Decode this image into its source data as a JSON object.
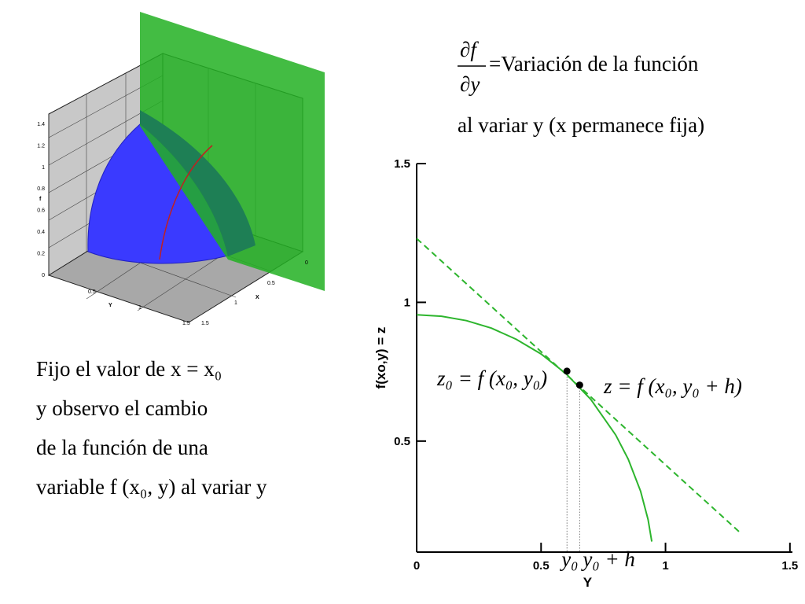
{
  "heading": {
    "numerator": "∂f",
    "denominator": "∂y",
    "text": "=Variación de la función",
    "line2": "al variar y (x permanece fija)"
  },
  "left_text": [
    "Fijo el valor de x = x₀",
    "y observo el cambio",
    "de la función de una",
    "variable f (x₀, y) al variar y"
  ],
  "surface_plot": {
    "f_label": "f",
    "y_label": "Y",
    "x_label": "X",
    "f_ticks": [
      "1.4",
      "1.2",
      "1",
      "0.8",
      "0.6",
      "0.4",
      "0.2",
      "0"
    ],
    "y_ticks": [
      "0.5",
      "1",
      "1.5"
    ],
    "x_ticks": [
      "0",
      "0.5",
      "1",
      "1.5"
    ]
  },
  "chart_data": {
    "type": "line",
    "xlabel": "Y",
    "ylabel": "f(xo,y) = z",
    "xlim": [
      0,
      1.51
    ],
    "ylim": [
      0.1,
      1.5
    ],
    "xticks": [
      0,
      0.5,
      1,
      1.5
    ],
    "yticks": [
      0.5,
      1,
      1.5
    ],
    "series": [
      {
        "color": "#2db52d",
        "style": "solid",
        "x": [
          0,
          0.1,
          0.2,
          0.3,
          0.4,
          0.5,
          0.6,
          0.7,
          0.8,
          0.85,
          0.9,
          0.93,
          0.945
        ],
        "values": [
          0.955,
          0.95,
          0.934,
          0.907,
          0.867,
          0.814,
          0.743,
          0.65,
          0.522,
          0.435,
          0.319,
          0.217,
          0.138
        ]
      },
      {
        "color": "#2db52d",
        "style": "dashed",
        "x": [
          0,
          1.3
        ],
        "values": [
          1.23,
          0.17
        ]
      },
      {
        "color": "#000000",
        "style": "markers",
        "x": [
          0.604,
          0.655
        ],
        "values": [
          0.752,
          0.702
        ]
      }
    ],
    "point_labels": [
      "y₀",
      "y₀ + h"
    ],
    "annotations": [
      "z₀ = f (x₀, y₀)",
      "z = f (x₀, y₀ + h)"
    ]
  }
}
